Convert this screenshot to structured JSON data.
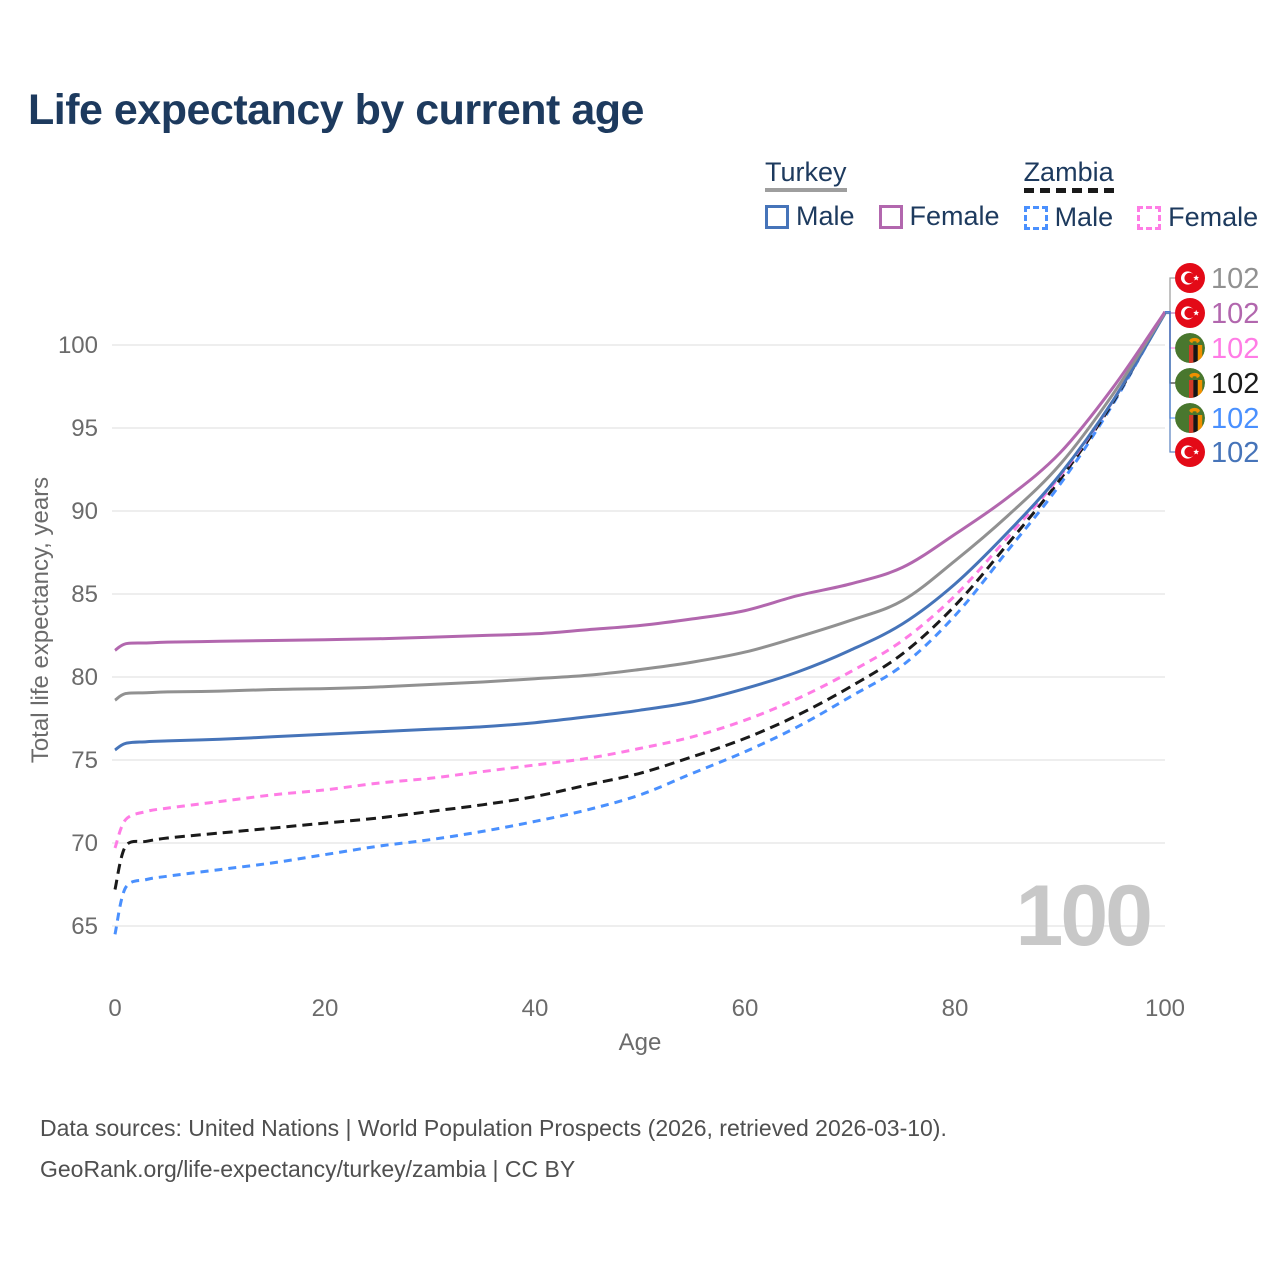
{
  "title": "Life expectancy by current age",
  "watermark": "100",
  "footer": {
    "line1": "Data sources: United Nations | World Population Prospects (2026, retrieved 2026-03-10).",
    "line2": "GeoRank.org/life-expectancy/turkey/zambia | CC BY"
  },
  "colors": {
    "title_navy": "#1d3a5e",
    "axis_text": "#6b6b6b",
    "gridline": "#e8e8e8",
    "watermark_gray": "#c8c8c8",
    "turkey_flag_red": "#e30a17",
    "zambia_flag_green": "#49772e",
    "zambia_flag_orange": "#f09000",
    "zambia_flag_stripe_red": "#d13a28"
  },
  "legend": {
    "groups": [
      {
        "country": "Turkey",
        "line": "solid",
        "underline_color": "#9e9e9e",
        "items": [
          {
            "label": "Male",
            "color": "#4674b9"
          },
          {
            "label": "Female",
            "color": "#b267ae"
          }
        ]
      },
      {
        "country": "Zambia",
        "line": "dashed",
        "underline_color": "#1a1a1a",
        "items": [
          {
            "label": "Male",
            "color": "#4a90fe"
          },
          {
            "label": "Female",
            "color": "#ff7ce5"
          }
        ]
      }
    ]
  },
  "chart_data": {
    "type": "line",
    "title": "Life expectancy by current age",
    "xlabel": "Age",
    "ylabel": "Total life expectancy, years",
    "x_ticks": [
      0,
      20,
      40,
      60,
      80,
      100
    ],
    "y_ticks": [
      65,
      70,
      75,
      80,
      85,
      90,
      95,
      100
    ],
    "xlim": [
      0,
      100
    ],
    "ylim": [
      63,
      103
    ],
    "grid": "horizontal-only",
    "legend_position": "top-right",
    "ages": [
      0,
      1,
      3,
      5,
      10,
      15,
      20,
      25,
      30,
      35,
      40,
      45,
      50,
      55,
      60,
      65,
      70,
      75,
      80,
      85,
      90,
      95,
      100
    ],
    "series": [
      {
        "name": "Zambia Male",
        "country": "Zambia",
        "sex": "Male",
        "line": "dashed",
        "color": "#4a90fe",
        "end_value": 102,
        "values": [
          64.5,
          67.3,
          67.8,
          68.0,
          68.4,
          68.8,
          69.3,
          69.8,
          70.2,
          70.7,
          71.3,
          72.0,
          72.9,
          74.2,
          75.5,
          77.0,
          78.8,
          80.7,
          83.7,
          87.6,
          91.6,
          96.4,
          102
        ]
      },
      {
        "name": "Zambia Both sexes",
        "country": "Zambia",
        "sex": "Both sexes",
        "line": "dashed",
        "color": "#1a1a1a",
        "end_value": 102,
        "values": [
          67.2,
          69.8,
          70.1,
          70.3,
          70.6,
          70.9,
          71.2,
          71.5,
          71.9,
          72.3,
          72.8,
          73.5,
          74.2,
          75.2,
          76.3,
          77.7,
          79.4,
          81.4,
          84.3,
          88.0,
          91.9,
          96.5,
          102
        ]
      },
      {
        "name": "Zambia Female",
        "country": "Zambia",
        "sex": "Female",
        "line": "dashed",
        "color": "#ff7ce5",
        "end_value": 102,
        "values": [
          69.7,
          71.4,
          71.9,
          72.1,
          72.5,
          72.9,
          73.2,
          73.6,
          73.9,
          74.3,
          74.7,
          75.1,
          75.7,
          76.4,
          77.4,
          78.7,
          80.3,
          82.2,
          84.9,
          88.4,
          92.1,
          96.6,
          102
        ]
      },
      {
        "name": "Turkey Male",
        "country": "Turkey",
        "sex": "Male",
        "line": "solid",
        "color": "#4674b9",
        "end_value": 102,
        "values": [
          75.6,
          76.0,
          76.1,
          76.15,
          76.25,
          76.4,
          76.55,
          76.7,
          76.85,
          77.0,
          77.25,
          77.6,
          78.0,
          78.5,
          79.3,
          80.3,
          81.6,
          83.2,
          85.6,
          88.7,
          92.2,
          96.6,
          101.9
        ]
      },
      {
        "name": "Turkey Both sexes",
        "country": "Turkey",
        "sex": "Both sexes",
        "line": "solid",
        "color": "#919191",
        "end_value": 102,
        "values": [
          78.6,
          79.0,
          79.05,
          79.1,
          79.15,
          79.25,
          79.3,
          79.4,
          79.55,
          79.7,
          79.9,
          80.1,
          80.45,
          80.9,
          81.5,
          82.4,
          83.4,
          84.6,
          87.0,
          89.7,
          92.8,
          97.0,
          101.95
        ]
      },
      {
        "name": "Turkey Female",
        "country": "Turkey",
        "sex": "Female",
        "line": "solid",
        "color": "#b267ae",
        "end_value": 102,
        "values": [
          81.6,
          82.0,
          82.05,
          82.1,
          82.15,
          82.2,
          82.25,
          82.3,
          82.4,
          82.5,
          82.6,
          82.85,
          83.1,
          83.5,
          84.0,
          84.9,
          85.6,
          86.6,
          88.6,
          90.8,
          93.5,
          97.4,
          102
        ]
      }
    ],
    "end_labels": [
      {
        "flag": "turkey",
        "series": "Turkey Both sexes",
        "value": 102,
        "color": "#919191"
      },
      {
        "flag": "turkey",
        "series": "Turkey Female",
        "value": 102,
        "color": "#b267ae"
      },
      {
        "flag": "zambia",
        "series": "Zambia Female",
        "value": 102,
        "color": "#ff7ce5"
      },
      {
        "flag": "zambia",
        "series": "Zambia Both sexes",
        "value": 102,
        "color": "#1a1a1a"
      },
      {
        "flag": "zambia",
        "series": "Zambia Male",
        "value": 102,
        "color": "#4a90fe"
      },
      {
        "flag": "turkey",
        "series": "Turkey Male",
        "value": 102,
        "color": "#4674b9"
      }
    ]
  }
}
